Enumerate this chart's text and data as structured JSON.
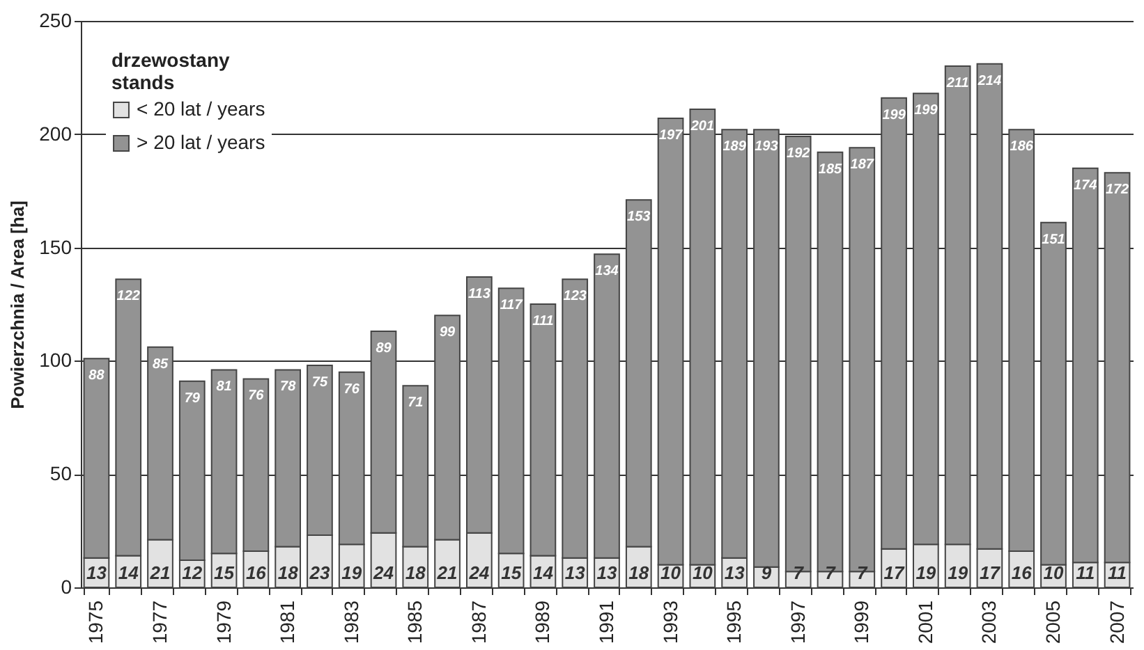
{
  "chart_data": {
    "type": "bar",
    "stacked": true,
    "ylabel": "Powierzchnia / Area [ha]",
    "legend_title": "drzewostany\nstands",
    "categories": [
      "1975",
      null,
      "1977",
      null,
      "1979",
      null,
      "1981",
      null,
      "1983",
      null,
      "1985",
      null,
      "1987",
      null,
      "1989",
      null,
      "1991",
      null,
      "1993",
      null,
      "1995",
      null,
      "1997",
      null,
      "1999",
      null,
      "2001",
      null,
      "2003",
      null,
      "2005",
      null,
      "2007"
    ],
    "series": [
      {
        "name": "< 20 lat / years",
        "color": "#e2e2e2",
        "values": [
          13,
          14,
          21,
          12,
          15,
          16,
          18,
          23,
          19,
          24,
          18,
          21,
          24,
          15,
          14,
          13,
          13,
          18,
          10,
          10,
          13,
          9,
          7,
          7,
          7,
          17,
          19,
          19,
          17,
          16,
          10,
          11,
          11
        ]
      },
      {
        "name": "> 20 lat / years",
        "color": "#939393",
        "values": [
          88,
          122,
          85,
          79,
          81,
          76,
          78,
          75,
          76,
          89,
          71,
          99,
          113,
          117,
          111,
          123,
          134,
          153,
          197,
          201,
          189,
          193,
          192,
          185,
          187,
          199,
          199,
          211,
          214,
          186,
          151,
          174,
          172
        ]
      }
    ],
    "ylim": [
      0,
      250
    ],
    "yticks": [
      0,
      50,
      100,
      150,
      200,
      250
    ],
    "grid": "y",
    "legend": "top left",
    "data_labels": true
  }
}
